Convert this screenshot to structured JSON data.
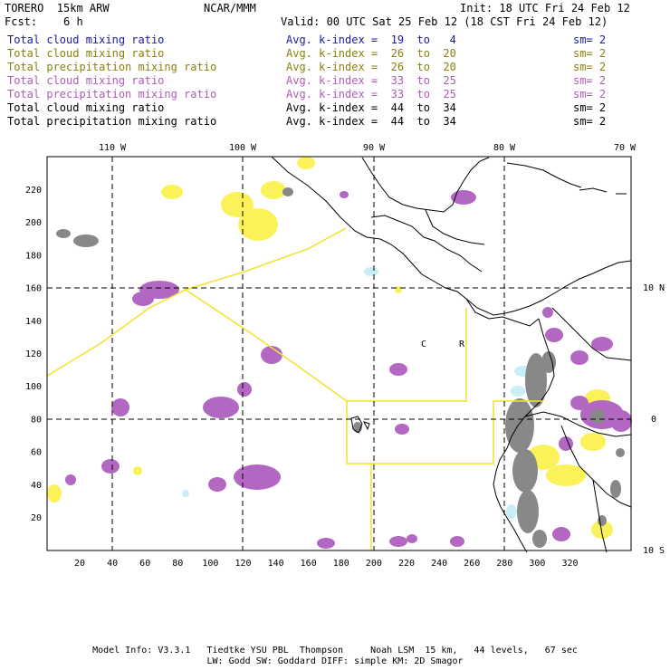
{
  "header": {
    "model": "TORERO  15km ARW",
    "org": "NCAR/MMM",
    "init": "Init: 18 UTC Fri 24 Feb 12",
    "fcst": "Fcst:    6 h",
    "valid": "Valid: 00 UTC Sat 25 Feb 12 (18 CST Fri 24 Feb 12)"
  },
  "legend": [
    {
      "name": "Total cloud mixing ratio",
      "kidx": "Avg. k-index =  19  to   4",
      "sm": "sm= 2",
      "color": "#1a1aa8"
    },
    {
      "name": "Total cloud mixing ratio",
      "kidx": "Avg. k-index =  26  to  20",
      "sm": "sm= 2",
      "color": "#8a7f0e"
    },
    {
      "name": "Total precipitation mixing ratio",
      "kidx": "Avg. k-index =  26  to  20",
      "sm": "sm= 2",
      "color": "#8a7f0e"
    },
    {
      "name": "Total cloud mixing ratio",
      "kidx": "Avg. k-index =  33  to  25",
      "sm": "sm= 2",
      "color": "#b05ab8"
    },
    {
      "name": "Total precipitation mixing ratio",
      "kidx": "Avg. k-index =  33  to  25",
      "sm": "sm= 2",
      "color": "#b05ab8"
    },
    {
      "name": "Total cloud mixing ratio",
      "kidx": "Avg. k-index =  44  to  34",
      "sm": "sm= 2",
      "color": "#000000"
    },
    {
      "name": "Total precipitation mixing ratio",
      "kidx": "Avg. k-index =  44  to  34",
      "sm": "sm= 2",
      "color": "#000000"
    }
  ],
  "map": {
    "lon_labels": [
      "110 W",
      "100 W",
      "90 W",
      "80 W",
      "70 W"
    ],
    "lat_labels": [
      "10 N",
      "0",
      "10 S"
    ],
    "x_ticks": [
      "20",
      "40",
      "60",
      "80",
      "100",
      "120",
      "140",
      "160",
      "180",
      "200",
      "220",
      "240",
      "260",
      "280",
      "300",
      "320"
    ],
    "y_ticks": [
      "20",
      "40",
      "60",
      "80",
      "100",
      "120",
      "140",
      "160",
      "180",
      "200",
      "220"
    ],
    "region_labels": [
      "C",
      "R"
    ],
    "colors": {
      "cyan": "#c8eef8",
      "yellow": "#fbf25a",
      "purple": "#b267c2",
      "gray": "#888888",
      "boundary": "#f2e22a"
    }
  },
  "footer": {
    "line1": "Model Info: V3.3.1   Tiedtke YSU PBL  Thompson     Noah LSM  15 km,   44 levels,   67 sec",
    "line2": "LW: Godd SW: Goddard DIFF: simple KM: 2D Smagor"
  }
}
